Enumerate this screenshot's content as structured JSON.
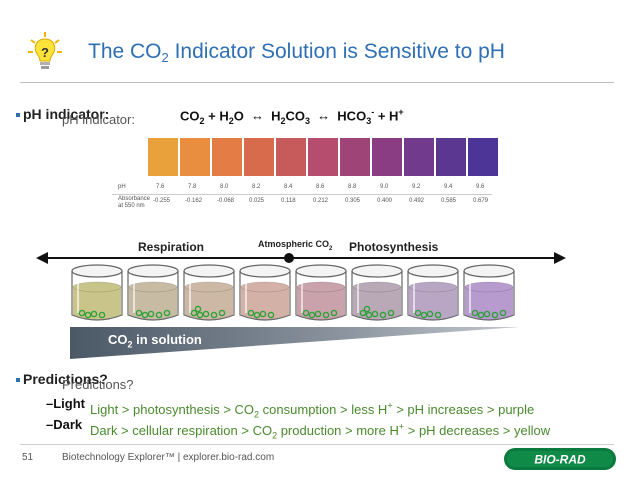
{
  "header": {
    "title_pre": "The CO",
    "title_sub": "2",
    "title_post": " Indicator Solution is Sensitive to pH",
    "icon": "lightbulb-question-icon"
  },
  "bullet1": {
    "label": "pH indicator:",
    "overlay": "pH indicator:"
  },
  "equation": {
    "co2": "CO",
    "co2_sub": "2",
    "plus1": " + H",
    "h2o_sub": "2",
    "o": "O",
    "h2co3_a": "H",
    "h2co3_sub": "2",
    "h2co3_b": "CO",
    "h2co3_sub2": "3",
    "hco3": "HCO",
    "hco3_sub": "3",
    "hco3_sup": "-",
    "plus2": " + H",
    "h_sup": "+"
  },
  "ph_scale": {
    "ph_label": "pH",
    "abs_label_1": "Absorbance",
    "abs_label_2": "at 550 nm",
    "colors": [
      "#e9a23b",
      "#e98e3f",
      "#e37d45",
      "#d86b4c",
      "#c75a5a",
      "#b64d6e",
      "#9f4477",
      "#8a3d83",
      "#713a8d",
      "#5b3792",
      "#4c3597"
    ],
    "ph": [
      "7.6",
      "7.8",
      "8.0",
      "8.2",
      "8.4",
      "8.6",
      "8.8",
      "9.0",
      "9.2",
      "9.4",
      "9.6"
    ],
    "absorbance": [
      "-0.255",
      "-0.162",
      "-0.068",
      "0.025",
      "0.118",
      "0.212",
      "0.305",
      "0.400",
      "0.492",
      "0.585",
      "0.679"
    ]
  },
  "scale_axis": {
    "left_label": "Respiration",
    "mid_label_pre": "Atmospheric CO",
    "mid_label_sub": "2",
    "right_label": "Photosynthesis"
  },
  "beakers": {
    "liquid_colors": [
      "#c9c48a",
      "#c8bba4",
      "#cdb8a5",
      "#d3b1a7",
      "#c9a2ab",
      "#b9a8b6",
      "#b9a6c4",
      "#b79bcf"
    ]
  },
  "gradient": {
    "label_pre": "CO",
    "label_sub": "2",
    "label_post": " in solution"
  },
  "predictions": {
    "label": "Predictions?",
    "overlay": "Predictions?",
    "light_lead": "Light",
    "light_text_a": "Light > photosynthesis > CO",
    "light_text_sub": "2",
    "light_text_b": " consumption > less H",
    "light_text_sup": "+",
    "light_text_c": " > pH increases > purple",
    "dark_lead": "Dark",
    "dark_text_a": "Dark > cellular respiration > CO",
    "dark_text_sub": "2",
    "dark_text_b": " production > more H",
    "dark_text_sup": "+",
    "dark_text_c": " > pH decreases > yellow"
  },
  "footer": {
    "page": "51",
    "text": "Biotechnology Explorer™ |  explorer.bio-rad.com",
    "logo": "BIO-RAD"
  }
}
